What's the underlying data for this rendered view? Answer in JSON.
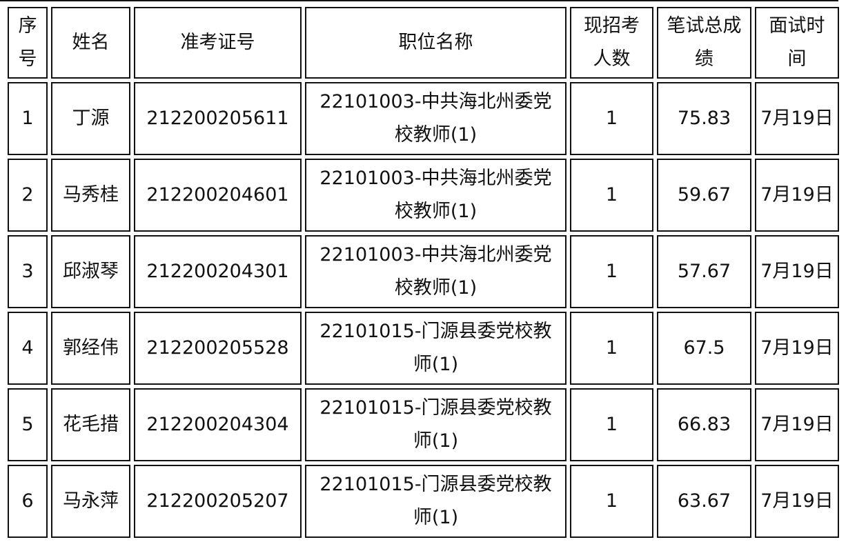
{
  "headers": [
    "序号",
    "姓名",
    "准考证号",
    "职位名称",
    "现招考人数",
    "笔试总成绩",
    "面试时间"
  ],
  "header_lines": [
    [
      "序",
      "号"
    ],
    [
      "姓名"
    ],
    [
      "准考证号"
    ],
    [
      "职位名称"
    ],
    [
      "现招考",
      "人数"
    ],
    [
      "笔试总成",
      "绩"
    ],
    [
      "面试时",
      "间"
    ]
  ],
  "rows": [
    {
      "no": "1",
      "name": "丁源",
      "id": "212200205611",
      "position_l1": "22101003-中共海北州委党",
      "position_l2": "校教师(1)",
      "quota": "1",
      "score": "75.83",
      "interview": "7月19日"
    },
    {
      "no": "2",
      "name": "马秀桂",
      "id": "212200204601",
      "position_l1": "22101003-中共海北州委党",
      "position_l2": "校教师(1)",
      "quota": "1",
      "score": "59.67",
      "interview": "7月19日"
    },
    {
      "no": "3",
      "name": "邱淑琴",
      "id": "212200204301",
      "position_l1": "22101003-中共海北州委党",
      "position_l2": "校教师(1)",
      "quota": "1",
      "score": "57.67",
      "interview": "7月19日"
    },
    {
      "no": "4",
      "name": "郭经伟",
      "id": "212200205528",
      "position_l1": "22101015-门源县委党校教",
      "position_l2": "师(1)",
      "quota": "1",
      "score": "67.5",
      "interview": "7月19日"
    },
    {
      "no": "5",
      "name": "花毛措",
      "id": "212200204304",
      "position_l1": "22101015-门源县委党校教",
      "position_l2": "师(1)",
      "quota": "1",
      "score": "66.83",
      "interview": "7月19日"
    },
    {
      "no": "6",
      "name": "马永萍",
      "id": "212200205207",
      "position_l1": "22101015-门源县委党校教",
      "position_l2": "师(1)",
      "quota": "1",
      "score": "63.67",
      "interview": "7月19日"
    }
  ]
}
